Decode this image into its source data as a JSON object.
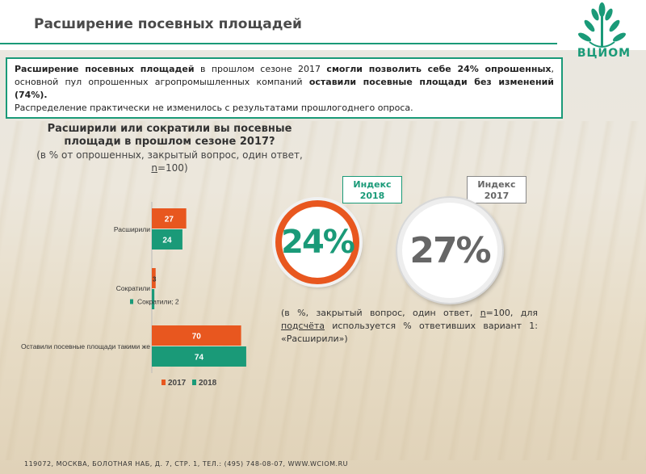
{
  "header": {
    "title": "Расширение посевных площадей",
    "logo_text": "ВЦИОМ"
  },
  "summary": {
    "p1_b1": "Расширение посевных площадей",
    "p1_t1": " в прошлом сезоне 2017 ",
    "p1_b2": "смогли позволить себе 24% опрошенных",
    "p1_t2": ", основной пул опрошенных агропромышленных компаний ",
    "p1_b3": "оставили посевные площади без изменений (74%).",
    "p2": "Распределение практически не изменилось с результатами прошлогоднего опроса."
  },
  "question": {
    "title": "Расширили или сократили вы посевные площади в прошлом сезоне 2017?",
    "sub_pre": "(в % от опрошенных, закрытый вопрос, один ответ, ",
    "sub_n": "n",
    "sub_post": "=100)"
  },
  "index_2018": {
    "label": "Индекс 2018",
    "value": "24%"
  },
  "index_2017": {
    "label": "Индекс 2017",
    "value": "27%"
  },
  "note": {
    "t1": "(в %, закрытый вопрос, один ответ, ",
    "n": "n",
    "t2": "=100, для ",
    "podscheta": "подсчёта",
    "t3": " используется % ответивших вариант 1: «Расширили»)"
  },
  "footer": "119072, МОСКВА, БОЛОТНАЯ НАБ, Д. 7, СТР. 1, ТЕЛ.: (495) 748-08-07, WWW.WCIOM.RU",
  "colors": {
    "2017": "#e8571f",
    "2018": "#1a9a78"
  },
  "chart_data": {
    "type": "bar",
    "orientation": "horizontal",
    "categories": [
      "Расширили",
      "Сократили",
      "Оставили посевные площади такими же"
    ],
    "series": [
      {
        "name": "2017",
        "values": [
          27,
          3,
          70
        ]
      },
      {
        "name": "2018",
        "values": [
          24,
          2,
          74
        ]
      }
    ],
    "category_labels": [
      "Расширили",
      "Сократили",
      "Оставили посевные площади такими же"
    ],
    "data_labels": [
      "27",
      "24",
      "3",
      "Сократили; 2",
      "70",
      "74"
    ],
    "legend": [
      "2017",
      "2018"
    ],
    "legend_position": "bottom",
    "xlim": [
      0,
      100
    ],
    "grid": false
  }
}
